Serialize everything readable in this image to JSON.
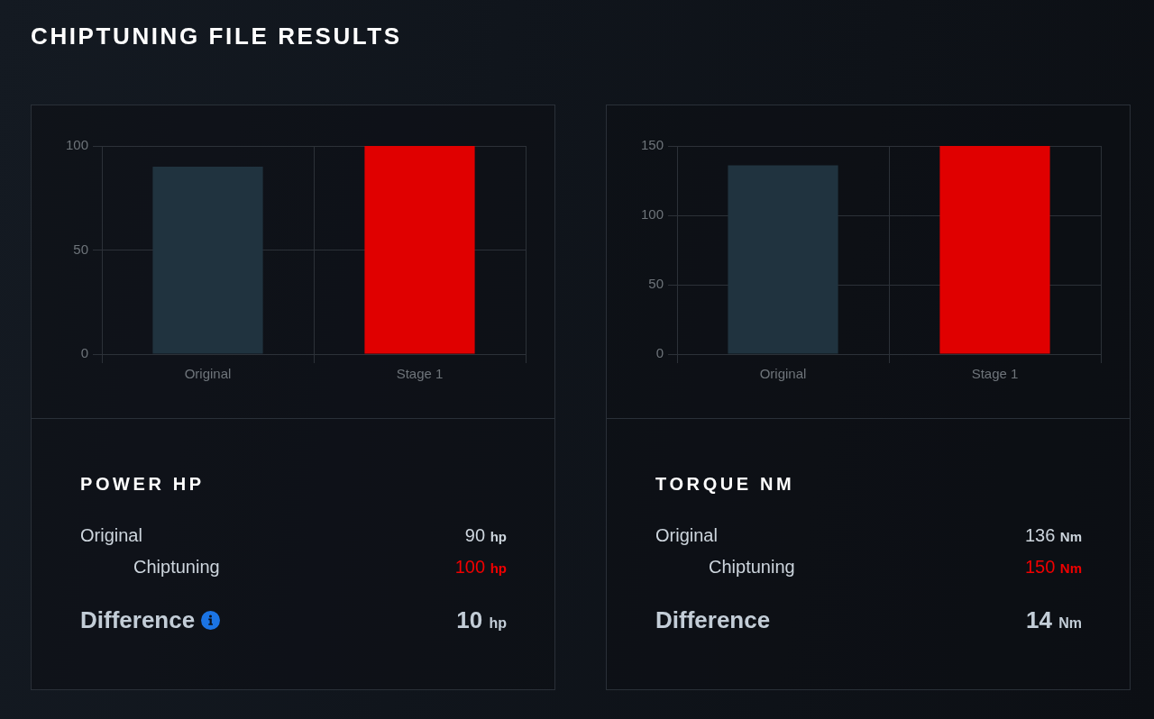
{
  "chart_data": [
    {
      "type": "bar",
      "title": "CHIPTUNING FILE RESULTS",
      "categories": [
        "Original",
        "Stage 1"
      ],
      "values": [
        90,
        100
      ],
      "colors": [
        "#20333f",
        "#e00000"
      ],
      "ylim": [
        0,
        100
      ],
      "yticks": [
        0,
        50,
        100
      ],
      "grid": true
    },
    {
      "type": "other",
      "title": "POWER HP",
      "annotations": [
        "Original",
        "90 hp",
        "Chiptuning",
        "100 hp",
        "Difference",
        "10 hp"
      ]
    },
    {
      "type": "bar",
      "categories": [
        "Original",
        "Stage 1"
      ],
      "values": [
        136,
        150
      ],
      "colors": [
        "#20333f",
        "#e00000"
      ],
      "ylim": [
        0,
        150
      ],
      "yticks": [
        0,
        50,
        100,
        150
      ],
      "grid": true
    },
    {
      "type": "other",
      "title": "TORQUE NM",
      "annotations": [
        "Original",
        "136 Nm",
        "Chiptuning",
        "150 Nm",
        "Difference",
        "14 Nm"
      ]
    }
  ]
}
